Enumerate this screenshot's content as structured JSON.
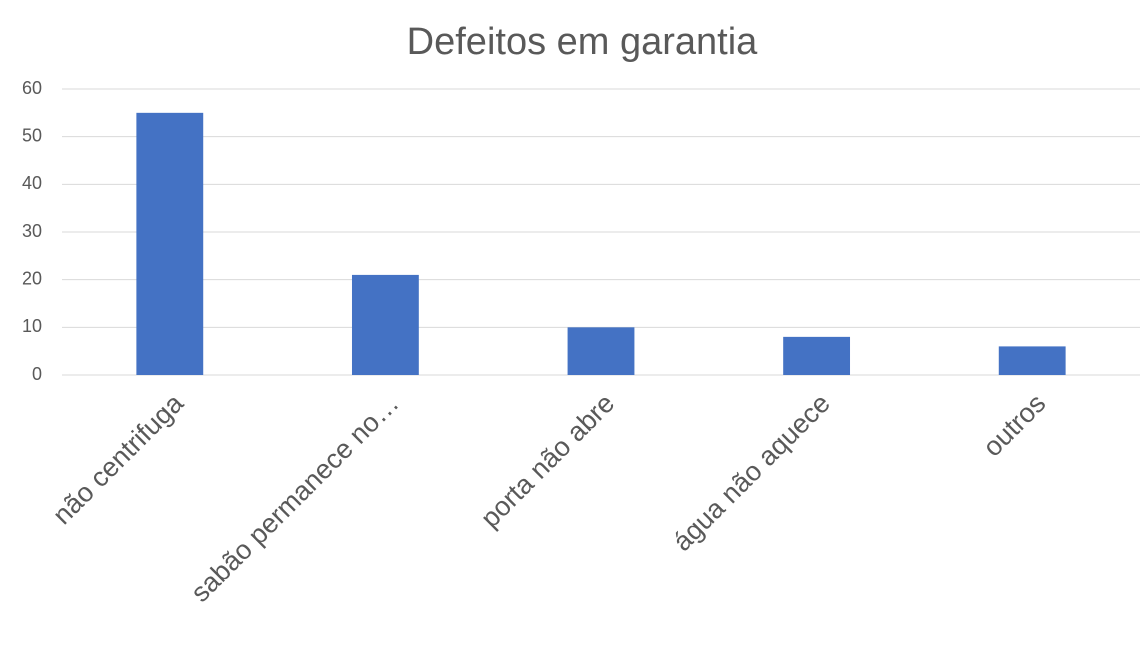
{
  "chart_data": {
    "type": "bar",
    "title": "Defeitos em garantia",
    "categories": [
      "não centrifuga",
      "sabão permanece no…",
      "porta não abre",
      "água não aquece",
      "outros"
    ],
    "values": [
      55,
      21,
      10,
      8,
      6
    ],
    "color": "#4472c4",
    "ylim": [
      0,
      60
    ],
    "yticks": [
      0,
      10,
      20,
      30,
      40,
      50,
      60
    ],
    "grid": true
  }
}
